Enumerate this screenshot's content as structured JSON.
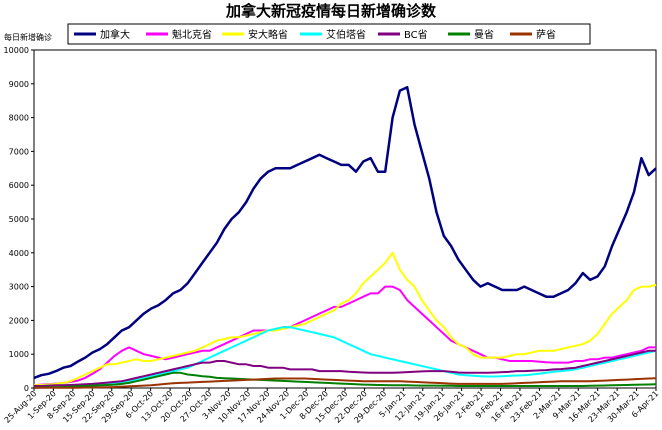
{
  "chart_data": {
    "type": "line",
    "title": "加拿大新冠疫情每日新增确诊数",
    "ylabel": "每日新增确诊",
    "ylim": [
      0,
      10000
    ],
    "yticks": [
      0,
      1000,
      2000,
      3000,
      4000,
      5000,
      6000,
      7000,
      8000,
      9000,
      10000
    ],
    "x_ticks": [
      "25-Aug-20",
      "1-Sep-20",
      "8-Sep-20",
      "15-Sep-20",
      "22-Sep-20",
      "29-Sep-20",
      "6-Oct-20",
      "13-Oct-20",
      "20-Oct-20",
      "27-Oct-20",
      "3-Nov-20",
      "10-Nov-20",
      "17-Nov-20",
      "24-Nov-20",
      "1-Dec-20",
      "8-Dec-20",
      "15-Dec-20",
      "22-Dec-20",
      "29-Dec-20",
      "5-Jan-21",
      "12-Jan-21",
      "19-Jan-21",
      "26-Jan-21",
      "2-Feb-21",
      "9-Feb-21",
      "16-Feb-21",
      "23-Feb-21",
      "2-Mar-21",
      "9-Mar-21",
      "16-Mar-21",
      "23-Mar-21",
      "30-Mar-21",
      "6-Apr-21"
    ],
    "grid": false,
    "legend_position": "top",
    "series": [
      {
        "name": "加拿大",
        "color": "#000080",
        "width": 2.5,
        "values": [
          300,
          380,
          420,
          500,
          600,
          650,
          780,
          900,
          1050,
          1150,
          1300,
          1500,
          1700,
          1800,
          2000,
          2200,
          2350,
          2450,
          2600,
          2800,
          2900,
          3100,
          3400,
          3700,
          4000,
          4300,
          4700,
          5000,
          5200,
          5500,
          5900,
          6200,
          6400,
          6500,
          6500,
          6500,
          6600,
          6700,
          6800,
          6900,
          6800,
          6700,
          6600,
          6600,
          6400,
          6700,
          6800,
          6400,
          6400,
          8000,
          8800,
          8900,
          7800,
          7000,
          6200,
          5200,
          4500,
          4200,
          3800,
          3500,
          3200,
          3000,
          3100,
          3000,
          2900,
          2900,
          2900,
          3000,
          2900,
          2800,
          2700,
          2700,
          2800,
          2900,
          3100,
          3400,
          3200,
          3300,
          3600,
          4200,
          4700,
          5200,
          5800,
          6800,
          6300,
          6500
        ]
      },
      {
        "name": "魁北克省",
        "color": "#ff00ff",
        "width": 2,
        "values": [
          80,
          100,
          110,
          130,
          150,
          180,
          220,
          300,
          420,
          560,
          750,
          950,
          1100,
          1200,
          1100,
          1000,
          950,
          900,
          850,
          900,
          950,
          1000,
          1050,
          1100,
          1100,
          1200,
          1300,
          1400,
          1500,
          1600,
          1700,
          1700,
          1700,
          1700,
          1800,
          1800,
          1900,
          2000,
          2100,
          2200,
          2300,
          2400,
          2400,
          2500,
          2600,
          2700,
          2800,
          2800,
          3000,
          3000,
          2900,
          2600,
          2400,
          2200,
          2000,
          1800,
          1600,
          1400,
          1300,
          1200,
          1100,
          1000,
          900,
          900,
          850,
          800,
          800,
          800,
          800,
          780,
          760,
          750,
          750,
          750,
          800,
          800,
          850,
          850,
          900,
          900,
          950,
          1000,
          1050,
          1100,
          1200,
          1200
        ]
      },
      {
        "name": "安大略省",
        "color": "#ffff00",
        "width": 2,
        "values": [
          80,
          90,
          100,
          120,
          150,
          200,
          300,
          400,
          500,
          600,
          700,
          700,
          750,
          800,
          850,
          800,
          800,
          850,
          900,
          950,
          1000,
          1050,
          1100,
          1200,
          1300,
          1400,
          1450,
          1500,
          1500,
          1550,
          1600,
          1650,
          1700,
          1700,
          1750,
          1800,
          1850,
          1900,
          2000,
          2100,
          2200,
          2300,
          2500,
          2600,
          2800,
          3100,
          3300,
          3500,
          3700,
          4000,
          3500,
          3200,
          3000,
          2600,
          2300,
          2000,
          1800,
          1500,
          1300,
          1200,
          1000,
          900,
          900,
          900,
          900,
          950,
          1000,
          1000,
          1050,
          1100,
          1100,
          1100,
          1150,
          1200,
          1250,
          1300,
          1400,
          1600,
          1900,
          2200,
          2400,
          2600,
          2900,
          3000,
          3000,
          3050
        ]
      },
      {
        "name": "艾伯塔省",
        "color": "#00ffff",
        "width": 2,
        "values": [
          60,
          60,
          70,
          70,
          80,
          80,
          90,
          100,
          110,
          120,
          130,
          150,
          170,
          200,
          250,
          300,
          350,
          400,
          450,
          500,
          550,
          600,
          700,
          800,
          900,
          1000,
          1100,
          1200,
          1300,
          1400,
          1500,
          1600,
          1700,
          1750,
          1800,
          1800,
          1750,
          1700,
          1650,
          1600,
          1550,
          1500,
          1400,
          1300,
          1200,
          1100,
          1000,
          950,
          900,
          850,
          800,
          750,
          700,
          650,
          600,
          550,
          500,
          450,
          400,
          380,
          360,
          350,
          340,
          340,
          350,
          360,
          370,
          380,
          400,
          420,
          450,
          480,
          500,
          520,
          550,
          600,
          650,
          700,
          750,
          800,
          850,
          900,
          950,
          1000,
          1050,
          1100
        ]
      },
      {
        "name": "BC省",
        "color": "#800080",
        "width": 2,
        "values": [
          60,
          60,
          70,
          80,
          80,
          90,
          100,
          110,
          120,
          140,
          160,
          180,
          200,
          250,
          300,
          350,
          400,
          450,
          500,
          550,
          600,
          650,
          700,
          750,
          750,
          800,
          800,
          750,
          700,
          700,
          650,
          650,
          600,
          600,
          600,
          550,
          550,
          550,
          550,
          500,
          500,
          500,
          500,
          480,
          470,
          460,
          450,
          450,
          450,
          450,
          460,
          470,
          480,
          490,
          500,
          500,
          500,
          480,
          460,
          450,
          450,
          450,
          450,
          460,
          470,
          480,
          500,
          500,
          510,
          520,
          530,
          550,
          560,
          580,
          600,
          650,
          700,
          750,
          800,
          850,
          900,
          950,
          1000,
          1050,
          1100,
          1100
        ]
      },
      {
        "name": "曼省",
        "color": "#008000",
        "width": 2,
        "values": [
          10,
          15,
          20,
          25,
          30,
          40,
          50,
          60,
          70,
          80,
          90,
          100,
          120,
          150,
          200,
          250,
          300,
          350,
          400,
          450,
          450,
          400,
          380,
          350,
          330,
          300,
          290,
          280,
          270,
          260,
          250,
          240,
          230,
          220,
          210,
          200,
          190,
          180,
          170,
          160,
          150,
          140,
          130,
          120,
          110,
          100,
          95,
          90,
          85,
          80,
          80,
          80,
          75,
          70,
          70,
          70,
          65,
          65,
          60,
          60,
          60,
          60,
          60,
          60,
          60,
          60,
          60,
          60,
          60,
          60,
          60,
          60,
          60,
          60,
          60,
          60,
          65,
          70,
          75,
          80,
          85,
          90,
          95,
          100,
          105,
          110
        ]
      },
      {
        "name": "萨省",
        "color": "#993300",
        "width": 2,
        "values": [
          5,
          5,
          5,
          10,
          10,
          10,
          10,
          15,
          15,
          20,
          25,
          30,
          40,
          50,
          60,
          70,
          80,
          100,
          120,
          140,
          150,
          160,
          170,
          180,
          190,
          200,
          210,
          220,
          230,
          240,
          250,
          260,
          270,
          280,
          280,
          280,
          280,
          280,
          270,
          260,
          250,
          240,
          230,
          220,
          210,
          200,
          200,
          200,
          200,
          200,
          200,
          190,
          180,
          170,
          160,
          150,
          140,
          130,
          120,
          120,
          120,
          120,
          120,
          120,
          120,
          130,
          140,
          150,
          160,
          170,
          180,
          190,
          200,
          200,
          200,
          200,
          200,
          210,
          220,
          230,
          240,
          250,
          260,
          270,
          280,
          290
        ]
      }
    ]
  }
}
